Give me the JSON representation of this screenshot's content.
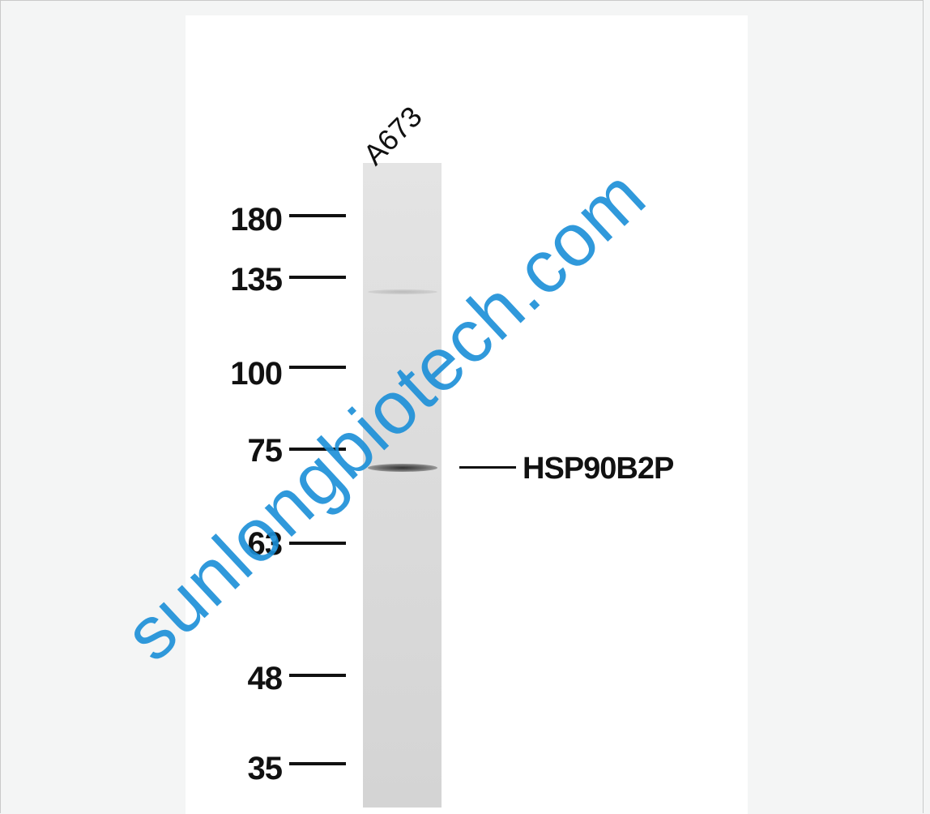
{
  "figure": {
    "lane_label": "A673",
    "markers": [
      {
        "label": "180"
      },
      {
        "label": "135"
      },
      {
        "label": "100"
      },
      {
        "label": "75"
      },
      {
        "label": "63"
      },
      {
        "label": "48"
      },
      {
        "label": "35"
      }
    ],
    "target_label": "HSP90B2P",
    "watermark": "sunlongbiotech.com"
  },
  "colors": {
    "background": "#f4f5f5",
    "panel": "#ffffff",
    "text": "#111111",
    "watermark": "#1a8fd8"
  }
}
